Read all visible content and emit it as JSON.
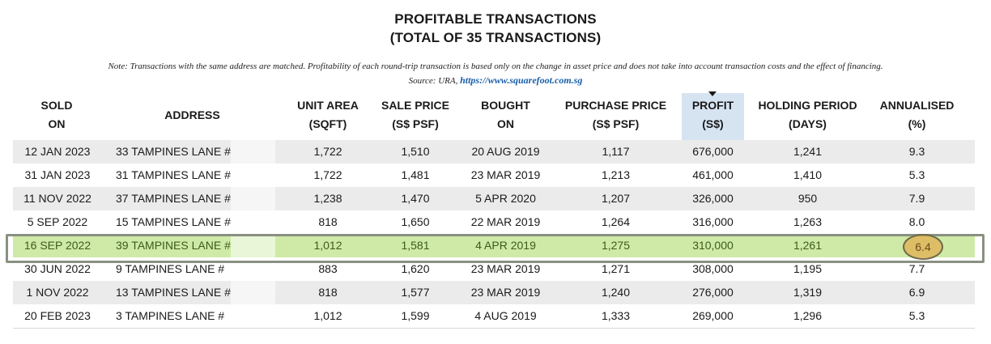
{
  "title": {
    "line1": "PROFITABLE TRANSACTIONS",
    "line2": "(TOTAL OF 35 TRANSACTIONS)"
  },
  "note": "Note: Transactions with the same address are matched. Profitability of each round-trip transaction is based only on the change in asset price and does not take into account transaction costs and the effect of financing.",
  "source": {
    "prefix": "Source: URA, ",
    "link": "https://www.squarefoot.com.sg"
  },
  "headers": {
    "sold_on": [
      "SOLD",
      "ON"
    ],
    "address": "ADDRESS",
    "unit_area": [
      "UNIT AREA",
      "(SQFT)"
    ],
    "sale_price": [
      "SALE PRICE",
      "(S$ PSF)"
    ],
    "bought_on": [
      "BOUGHT",
      "ON"
    ],
    "purchase_price": [
      "PURCHASE PRICE",
      "(S$ PSF)"
    ],
    "profit": [
      "PROFIT",
      "(S$)"
    ],
    "holding_period": [
      "HOLDING PERIOD",
      "(DAYS)"
    ],
    "annualised": [
      "ANNUALISED",
      "(%)"
    ]
  },
  "highlight_color": "#cfeaa6",
  "rows": [
    {
      "sold_on": "12 JAN 2023",
      "address": "33 TAMPINES LANE #",
      "unit_area": "1,722",
      "sale_price": "1,510",
      "bought_on": "20 AUG 2019",
      "purchase_price": "1,117",
      "profit": "676,000",
      "holding_period": "1,241",
      "annualised": "9.3"
    },
    {
      "sold_on": "31 JAN 2023",
      "address": "31 TAMPINES LANE #",
      "unit_area": "1,722",
      "sale_price": "1,481",
      "bought_on": "23 MAR 2019",
      "purchase_price": "1,213",
      "profit": "461,000",
      "holding_period": "1,410",
      "annualised": "5.3"
    },
    {
      "sold_on": "11 NOV 2022",
      "address": "37 TAMPINES LANE #",
      "unit_area": "1,238",
      "sale_price": "1,470",
      "bought_on": "5 APR 2020",
      "purchase_price": "1,207",
      "profit": "326,000",
      "holding_period": "950",
      "annualised": "7.9"
    },
    {
      "sold_on": "5 SEP 2022",
      "address": "15 TAMPINES LANE #",
      "unit_area": "818",
      "sale_price": "1,650",
      "bought_on": "22 MAR 2019",
      "purchase_price": "1,264",
      "profit": "316,000",
      "holding_period": "1,263",
      "annualised": "8.0"
    },
    {
      "sold_on": "16 SEP 2022",
      "address": "39 TAMPINES LANE #",
      "unit_area": "1,012",
      "sale_price": "1,581",
      "bought_on": "4 APR 2019",
      "purchase_price": "1,275",
      "profit": "310,000",
      "holding_period": "1,261",
      "annualised": "6.4"
    },
    {
      "sold_on": "30 JUN 2022",
      "address": "9 TAMPINES LANE #",
      "unit_area": "883",
      "sale_price": "1,620",
      "bought_on": "23 MAR 2019",
      "purchase_price": "1,271",
      "profit": "308,000",
      "holding_period": "1,195",
      "annualised": "7.7"
    },
    {
      "sold_on": "1 NOV 2022",
      "address": "13 TAMPINES LANE #",
      "unit_area": "818",
      "sale_price": "1,577",
      "bought_on": "23 MAR 2019",
      "purchase_price": "1,240",
      "profit": "276,000",
      "holding_period": "1,319",
      "annualised": "6.9"
    },
    {
      "sold_on": "20 FEB 2023",
      "address": "3 TAMPINES LANE #",
      "unit_area": "1,012",
      "sale_price": "1,599",
      "bought_on": "4 AUG 2019",
      "purchase_price": "1,333",
      "profit": "269,000",
      "holding_period": "1,296",
      "annualised": "5.3"
    }
  ]
}
